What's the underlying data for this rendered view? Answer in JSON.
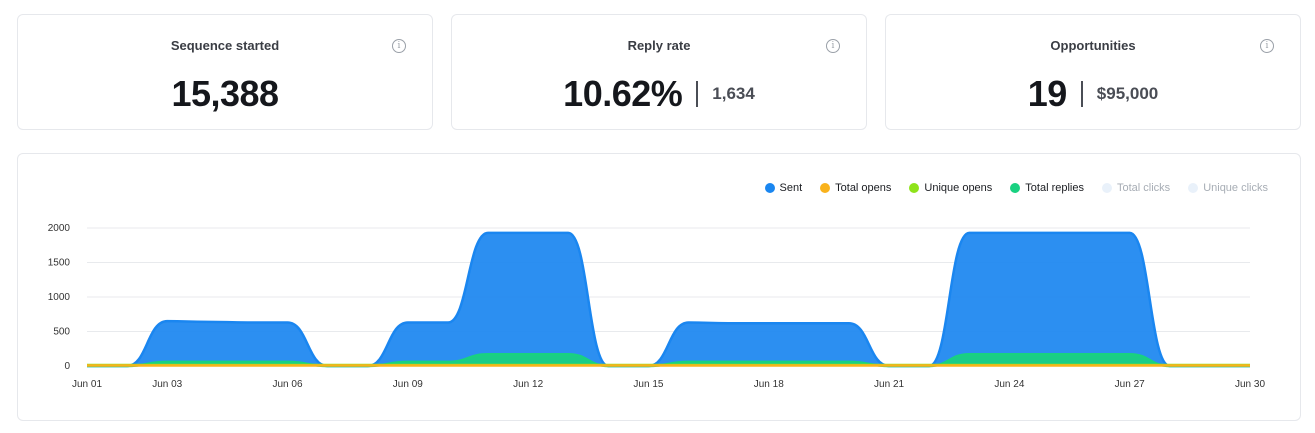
{
  "stats": [
    {
      "title": "Sequence started",
      "value": "15,388",
      "sub": ""
    },
    {
      "title": "Reply rate",
      "value": "10.62%",
      "sub": "1,634"
    },
    {
      "title": "Opportunities",
      "value": "19",
      "sub": "$95,000"
    }
  ],
  "info_icon_name": "info-icon",
  "legend": [
    {
      "label": "Sent",
      "color": "#1a86f0",
      "active": true
    },
    {
      "label": "Total opens",
      "color": "#f9b21c",
      "active": true
    },
    {
      "label": "Unique opens",
      "color": "#8fe31a",
      "active": true
    },
    {
      "label": "Total replies",
      "color": "#19d181",
      "active": true
    },
    {
      "label": "Total clicks",
      "color": "#e9f1fa",
      "active": false
    },
    {
      "label": "Unique clicks",
      "color": "#e9f1fa",
      "active": false
    }
  ],
  "chart_data": {
    "type": "area",
    "title": "",
    "xlabel": "",
    "ylabel": "",
    "ylim": [
      0,
      2000
    ],
    "yticks": [
      0,
      500,
      1000,
      1500,
      2000
    ],
    "xtick_labels": [
      "Jun 01",
      "Jun 03",
      "Jun 06",
      "Jun 09",
      "Jun 12",
      "Jun 15",
      "Jun 18",
      "Jun 21",
      "Jun 24",
      "Jun 27",
      "Jun 30"
    ],
    "xtick_days": [
      1,
      3,
      6,
      9,
      12,
      15,
      18,
      21,
      24,
      27,
      30
    ],
    "x_days": [
      1,
      2,
      3,
      4,
      5,
      6,
      7,
      8,
      9,
      10,
      11,
      12,
      13,
      14,
      15,
      16,
      17,
      18,
      19,
      20,
      21,
      22,
      23,
      24,
      25,
      26,
      27,
      28,
      29,
      30
    ],
    "grid": true,
    "legend_position": "top-right",
    "series": [
      {
        "name": "Sent",
        "color": "#1a86f0",
        "values": [
          0,
          0,
          650,
          640,
          630,
          630,
          0,
          0,
          630,
          630,
          1930,
          1930,
          1930,
          0,
          0,
          630,
          620,
          620,
          620,
          620,
          0,
          0,
          1930,
          1930,
          1930,
          1930,
          1930,
          0,
          0,
          0
        ]
      },
      {
        "name": "Total replies",
        "color": "#19d181",
        "values": [
          0,
          0,
          60,
          60,
          60,
          60,
          0,
          0,
          60,
          60,
          170,
          170,
          170,
          0,
          0,
          60,
          60,
          60,
          60,
          60,
          0,
          0,
          170,
          170,
          170,
          170,
          170,
          0,
          0,
          0
        ]
      },
      {
        "name": "Unique opens",
        "color": "#8fe31a",
        "values": [
          15,
          15,
          15,
          15,
          15,
          15,
          15,
          15,
          15,
          15,
          15,
          15,
          15,
          15,
          15,
          15,
          15,
          15,
          15,
          15,
          15,
          15,
          15,
          15,
          15,
          15,
          15,
          15,
          15,
          15
        ]
      },
      {
        "name": "Total opens",
        "color": "#f9b21c",
        "values": [
          8,
          8,
          8,
          8,
          8,
          8,
          8,
          8,
          8,
          8,
          8,
          8,
          8,
          8,
          8,
          8,
          8,
          8,
          8,
          8,
          8,
          8,
          8,
          8,
          8,
          8,
          8,
          8,
          8,
          8
        ]
      }
    ]
  }
}
